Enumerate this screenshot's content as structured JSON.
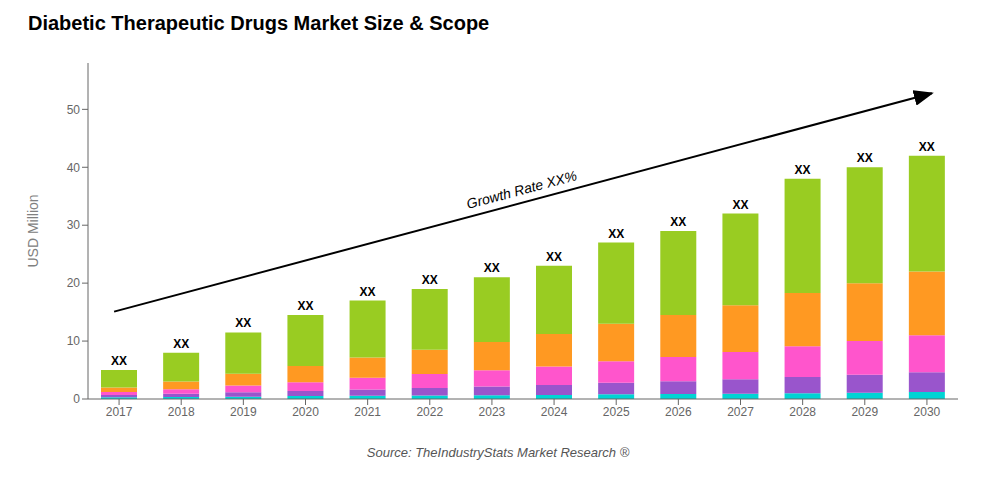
{
  "chart_data": {
    "type": "bar",
    "stacked": true,
    "title": "Diabetic Therapeutic Drugs Market Size & Scope",
    "y_label": "USD Million",
    "annotations": [
      "Growth Rate XX%",
      "Source: TheIndustryStats Market Research ®"
    ],
    "categories": [
      "2017",
      "2018",
      "2019",
      "2020",
      "2021",
      "2022",
      "2023",
      "2024",
      "2025",
      "2026",
      "2027",
      "2028",
      "2029",
      "2030"
    ],
    "series": [
      {
        "color": "#00d4d4",
        "values": [
          0.3,
          0.35,
          0.4,
          0.5,
          0.55,
          0.6,
          0.65,
          0.7,
          0.8,
          0.85,
          0.9,
          1.0,
          1.1,
          1.2
        ]
      },
      {
        "color": "#9955cc",
        "values": [
          0.4,
          0.55,
          0.75,
          0.9,
          1.1,
          1.3,
          1.5,
          1.7,
          2.0,
          2.2,
          2.5,
          2.8,
          3.1,
          3.4
        ]
      },
      {
        "color": "#ff55cc",
        "values": [
          0.5,
          0.8,
          1.2,
          1.5,
          2.0,
          2.4,
          2.8,
          3.2,
          3.7,
          4.2,
          4.7,
          5.3,
          5.8,
          6.4
        ]
      },
      {
        "color": "#ff9922",
        "values": [
          0.8,
          1.3,
          2.0,
          2.8,
          3.5,
          4.2,
          4.9,
          5.6,
          6.5,
          7.25,
          8.1,
          9.2,
          10.0,
          11.0
        ]
      },
      {
        "color": "#99cc22",
        "values": [
          3.0,
          5.0,
          7.15,
          8.8,
          9.85,
          10.5,
          11.15,
          11.8,
          14.0,
          14.5,
          15.8,
          19.7,
          20.0,
          20.0
        ],
        "data_labels": true,
        "value_labels": [
          "XX",
          "XX",
          "XX",
          "XX",
          "XX",
          "XX",
          "XX",
          "XX",
          "XX",
          "XX",
          "XX",
          "XX",
          "XX",
          "XX"
        ]
      }
    ],
    "ylim": [
      0,
      58
    ],
    "yticks": [
      0,
      10,
      20,
      30,
      40,
      50
    ],
    "grid": false
  }
}
